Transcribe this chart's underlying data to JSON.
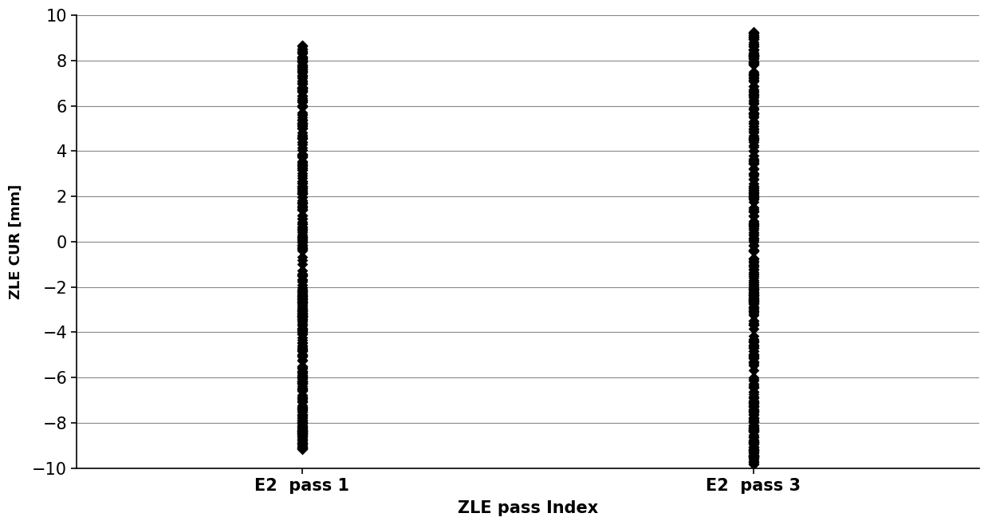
{
  "title": "",
  "xlabel": "ZLE pass Index",
  "ylabel": "ZLE CUR [mm]",
  "ylim": [
    -10,
    10
  ],
  "yticks": [
    -10,
    -8,
    -6,
    -4,
    -2,
    0,
    2,
    4,
    6,
    8,
    10
  ],
  "x_categories": [
    "E2  pass 1",
    "E2  pass 3"
  ],
  "x_positions": [
    1,
    3
  ],
  "xlim": [
    0,
    4
  ],
  "marker": "D",
  "marker_color": "#000000",
  "marker_size": 7,
  "background_color": "#ffffff",
  "grid_color": "#888888",
  "n_points_pass1": 300,
  "n_points_pass3": 300,
  "seed": 42,
  "pass1_min": -9.0,
  "pass1_max": 8.6,
  "pass3_min": -9.7,
  "pass3_max": 9.2,
  "xlabel_fontsize": 15,
  "ylabel_fontsize": 13,
  "tick_fontsize": 15,
  "font_family": "Arial Black"
}
